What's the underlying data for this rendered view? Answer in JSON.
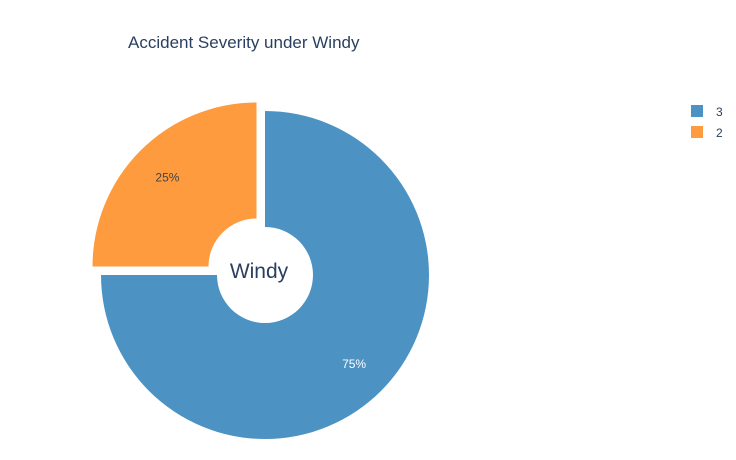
{
  "chart_data": {
    "type": "pie",
    "title": "Accident Severity under Windy",
    "center_label": "Windy",
    "hole": true,
    "slices": [
      {
        "label": "3",
        "value": 75,
        "percent_label": "75%",
        "color": "#4c93c3",
        "text_color": "#ffffff",
        "pulled": false
      },
      {
        "label": "2",
        "value": 25,
        "percent_label": "25%",
        "color": "#fe9b3e",
        "text_color": "#444444",
        "pulled": true
      }
    ],
    "legend": {
      "placement": "top-right",
      "entries": [
        "3",
        "2"
      ]
    }
  }
}
